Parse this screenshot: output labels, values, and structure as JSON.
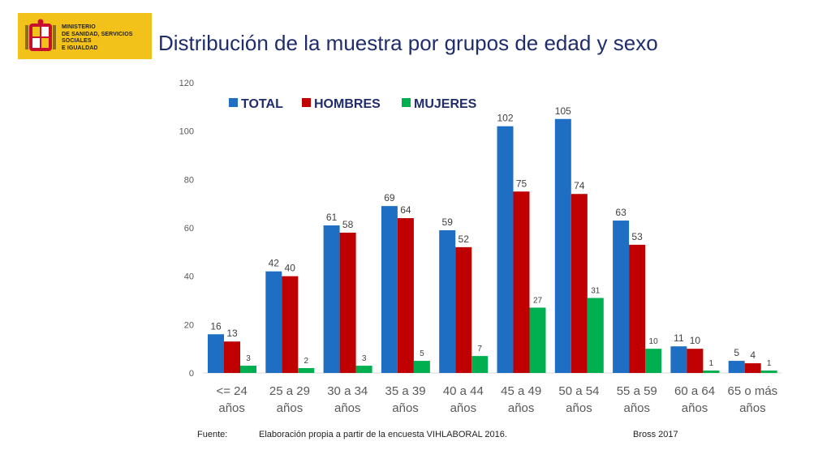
{
  "logo": {
    "lines": [
      "MINISTERIO",
      "DE SANIDAD, SERVICIOS SOCIALES",
      "E IGUALDAD"
    ]
  },
  "title": "Distribución de la muestra por grupos de edad y sexo",
  "footer": {
    "source_label": "Fuente:",
    "source_text": "Elaboración propia a partir de la encuesta  VIHLABORAL 2016.",
    "credit": "Bross 2017"
  },
  "colors": {
    "total": "#1e6fc3",
    "hombres": "#c00000",
    "mujeres": "#00b050"
  },
  "chart_data": {
    "type": "bar",
    "title": "Distribución de la muestra por grupos de edad y sexo",
    "xlabel": "",
    "ylabel": "",
    "ylim": [
      0,
      120
    ],
    "yticks": [
      0,
      20,
      40,
      60,
      80,
      100,
      120
    ],
    "grid": false,
    "legend_position": "top-left",
    "categories": [
      [
        "<= 24",
        "años"
      ],
      [
        "25 a 29",
        "años"
      ],
      [
        "30 a 34",
        "años"
      ],
      [
        "35 a 39",
        "años"
      ],
      [
        "40 a 44",
        "años"
      ],
      [
        "45 a 49",
        "años"
      ],
      [
        "50 a 54",
        "años"
      ],
      [
        "55 a 59",
        "años"
      ],
      [
        "60 a 64",
        "años"
      ],
      [
        "65 o más",
        "años"
      ]
    ],
    "series": [
      {
        "name": "TOTAL",
        "key": "total",
        "values": [
          16,
          42,
          61,
          69,
          59,
          102,
          105,
          63,
          11,
          5
        ]
      },
      {
        "name": "HOMBRES",
        "key": "hombres",
        "values": [
          13,
          40,
          58,
          64,
          52,
          75,
          74,
          53,
          10,
          4
        ]
      },
      {
        "name": "MUJERES",
        "key": "mujeres",
        "values": [
          3,
          2,
          3,
          5,
          7,
          27,
          31,
          10,
          1,
          1
        ]
      }
    ]
  }
}
